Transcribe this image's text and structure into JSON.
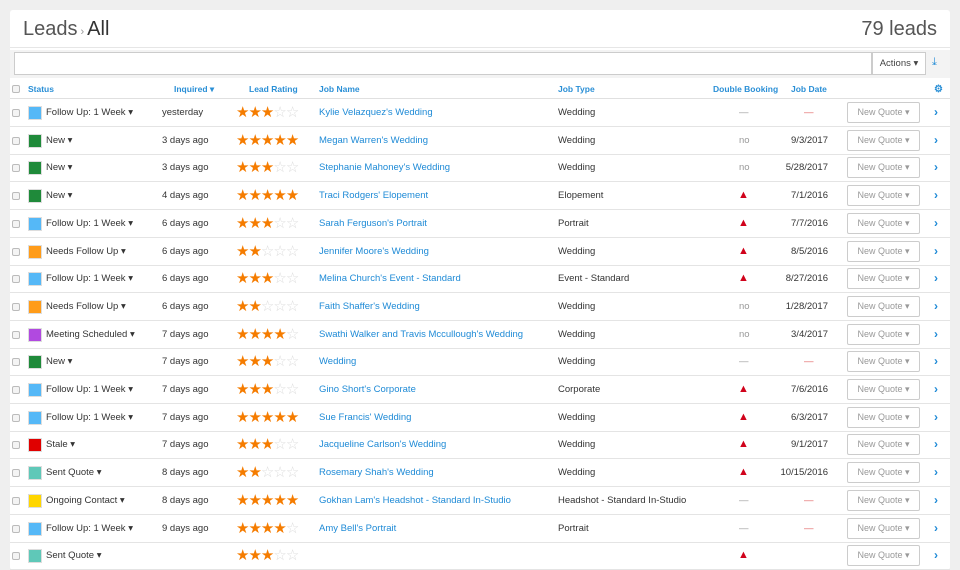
{
  "header": {
    "section": "Leads",
    "separator": "›",
    "view": "All",
    "count": "79 leads"
  },
  "toolbar": {
    "search_value": "",
    "actions_label": "Actions ▾",
    "download_icon": "download-icon"
  },
  "columns": {
    "status": "Status",
    "inquired": "Inquired ▾",
    "rating": "Lead Rating",
    "job_name": "Job Name",
    "job_type": "Job Type",
    "double_booking": "Double Booking",
    "job_date": "Job Date",
    "settings_icon": "gear-icon"
  },
  "colors": {
    "blue": "#55b8f7",
    "green": "#1f8a3a",
    "orange": "#ff9c1a",
    "purple": "#b149e0",
    "red": "#e00000",
    "teal": "#5fc8b8",
    "yellow": "#ffd600",
    "link": "#1e8ad6",
    "star": "#f57c00"
  },
  "rows": [
    {
      "status": "Follow Up: 1 Week",
      "color": "#55b8f7",
      "inquired": "yesterday",
      "rating": 3,
      "job_name": "Kylie Velazquez's Wedding",
      "job_type": "Wedding",
      "double_booking": "—",
      "job_date": "—",
      "quote": "New Quote ▾"
    },
    {
      "status": "New",
      "color": "#1f8a3a",
      "inquired": "3 days ago",
      "rating": 5,
      "job_name": "Megan Warren's Wedding",
      "job_type": "Wedding",
      "double_booking": "no",
      "job_date": "9/3/2017",
      "quote": "New Quote ▾"
    },
    {
      "status": "New",
      "color": "#1f8a3a",
      "inquired": "3 days ago",
      "rating": 3,
      "job_name": "Stephanie Mahoney's Wedding",
      "job_type": "Wedding",
      "double_booking": "no",
      "job_date": "5/28/2017",
      "quote": "New Quote ▾"
    },
    {
      "status": "New",
      "color": "#1f8a3a",
      "inquired": "4 days ago",
      "rating": 5,
      "job_name": "Traci Rodgers' Elopement",
      "job_type": "Elopement",
      "double_booking": "warning",
      "job_date": "7/1/2016",
      "quote": "New Quote ▾"
    },
    {
      "status": "Follow Up: 1 Week",
      "color": "#55b8f7",
      "inquired": "6 days ago",
      "rating": 3,
      "job_name": "Sarah Ferguson's Portrait",
      "job_type": "Portrait",
      "double_booking": "warning",
      "job_date": "7/7/2016",
      "quote": "New Quote ▾"
    },
    {
      "status": "Needs Follow Up",
      "color": "#ff9c1a",
      "inquired": "6 days ago",
      "rating": 2,
      "job_name": "Jennifer Moore's Wedding",
      "job_type": "Wedding",
      "double_booking": "warning",
      "job_date": "8/5/2016",
      "quote": "New Quote ▾"
    },
    {
      "status": "Follow Up: 1 Week",
      "color": "#55b8f7",
      "inquired": "6 days ago",
      "rating": 3,
      "job_name": "Melina Church's Event - Standard",
      "job_type": "Event - Standard",
      "double_booking": "warning",
      "job_date": "8/27/2016",
      "quote": "New Quote ▾"
    },
    {
      "status": "Needs Follow Up",
      "color": "#ff9c1a",
      "inquired": "6 days ago",
      "rating": 2,
      "job_name": "Faith Shaffer's Wedding",
      "job_type": "Wedding",
      "double_booking": "no",
      "job_date": "1/28/2017",
      "quote": "New Quote ▾"
    },
    {
      "status": "Meeting Scheduled",
      "color": "#b149e0",
      "inquired": "7 days ago",
      "rating": 4,
      "job_name": "Swathi Walker and Travis Mccullough's Wedding",
      "job_type": "Wedding",
      "double_booking": "no",
      "job_date": "3/4/2017",
      "quote": "New Quote ▾"
    },
    {
      "status": "New",
      "color": "#1f8a3a",
      "inquired": "7 days ago",
      "rating": 3,
      "job_name": "Wedding",
      "job_type": "Wedding",
      "double_booking": "—",
      "job_date": "—",
      "quote": "New Quote ▾"
    },
    {
      "status": "Follow Up: 1 Week",
      "color": "#55b8f7",
      "inquired": "7 days ago",
      "rating": 3,
      "job_name": "Gino Short's Corporate",
      "job_type": "Corporate",
      "double_booking": "warning",
      "job_date": "7/6/2016",
      "quote": "New Quote ▾"
    },
    {
      "status": "Follow Up: 1 Week",
      "color": "#55b8f7",
      "inquired": "7 days ago",
      "rating": 5,
      "job_name": "Sue Francis' Wedding",
      "job_type": "Wedding",
      "double_booking": "warning",
      "job_date": "6/3/2017",
      "quote": "New Quote ▾"
    },
    {
      "status": "Stale",
      "color": "#e00000",
      "inquired": "7 days ago",
      "rating": 3,
      "job_name": "Jacqueline Carlson's Wedding",
      "job_type": "Wedding",
      "double_booking": "warning",
      "job_date": "9/1/2017",
      "quote": "New Quote ▾"
    },
    {
      "status": "Sent Quote",
      "color": "#5fc8b8",
      "inquired": "8 days ago",
      "rating": 2,
      "job_name": "Rosemary Shah's Wedding",
      "job_type": "Wedding",
      "double_booking": "warning",
      "job_date": "10/15/2016",
      "quote": "New Quote ▾"
    },
    {
      "status": "Ongoing Contact",
      "color": "#ffd600",
      "inquired": "8 days ago",
      "rating": 5,
      "job_name": "Gokhan Lam's Headshot - Standard In-Studio",
      "job_type": "Headshot - Standard In-Studio",
      "double_booking": "—",
      "job_date": "—",
      "quote": "New Quote ▾"
    },
    {
      "status": "Follow Up: 1 Week",
      "color": "#55b8f7",
      "inquired": "9 days ago",
      "rating": 4,
      "job_name": "Amy Bell's Portrait",
      "job_type": "Portrait",
      "double_booking": "—",
      "job_date": "—",
      "quote": "New Quote ▾"
    },
    {
      "status": "Sent Quote",
      "color": "#5fc8b8",
      "inquired": "",
      "rating": 3,
      "job_name": "",
      "job_type": "",
      "double_booking": "warning",
      "job_date": "",
      "quote": "New Quote ▾"
    }
  ]
}
